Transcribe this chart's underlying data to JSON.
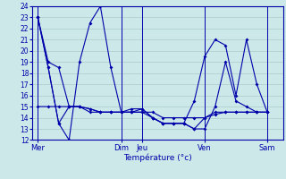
{
  "xlabel": "Température (°c)",
  "background_color": "#cce8e8",
  "grid_color": "#aacccc",
  "line_color": "#0000aa",
  "ylim": [
    12,
    24
  ],
  "yticks": [
    12,
    13,
    14,
    15,
    16,
    17,
    18,
    19,
    20,
    21,
    22,
    23,
    24
  ],
  "day_labels": [
    "Mer",
    "Dim",
    "Jeu",
    "Ven",
    "Sam"
  ],
  "day_positions": [
    0.5,
    8.5,
    10.5,
    16.5,
    22.5
  ],
  "xlim": [
    0,
    24
  ],
  "series": [
    {
      "x": [
        0.5,
        1.5,
        2.5,
        3.5,
        4.5,
        5.5,
        6.5,
        7.5,
        8.5,
        9.5,
        10.5,
        11.5,
        12.5,
        13.5,
        14.5,
        15.5,
        16.5,
        17.5,
        18.5,
        19.5,
        20.5,
        21.5,
        22.5
      ],
      "y": [
        23,
        19,
        18.5,
        15,
        15,
        14.8,
        14.5,
        14.5,
        14.5,
        14.5,
        14.5,
        14.5,
        14,
        14,
        14,
        14,
        14,
        14.3,
        14.5,
        14.5,
        14.5,
        14.5,
        14.5
      ]
    },
    {
      "x": [
        0.5,
        1.5,
        2.5,
        3.5,
        4.5,
        5.5,
        6.5,
        7.5,
        8.5,
        9.5,
        10.5,
        11.5,
        12.5,
        13.5,
        14.5,
        15.5,
        16.5,
        17.5,
        18.5,
        19.5,
        20.5,
        21.5,
        22.5
      ],
      "y": [
        23,
        18.5,
        13.5,
        12,
        19,
        22.5,
        24,
        18.5,
        14.5,
        14.8,
        14.8,
        14,
        13.5,
        13.5,
        13.5,
        15.5,
        19.5,
        21,
        20.5,
        16,
        21,
        17,
        14.5
      ]
    },
    {
      "x": [
        0.5,
        1.5,
        2.5,
        3.5,
        4.5,
        5.5,
        6.5,
        7.5,
        8.5,
        9.5,
        10.5,
        11.5,
        12.5,
        13.5,
        14.5,
        15.5,
        16.5,
        17.5,
        18.5,
        19.5,
        20.5,
        21.5,
        22.5
      ],
      "y": [
        23,
        18.5,
        13.5,
        15,
        15,
        14.5,
        14.5,
        14.5,
        14.5,
        14.5,
        14.8,
        14,
        13.5,
        13.5,
        13.5,
        13,
        13,
        15,
        19,
        15.5,
        15,
        14.5,
        14.5
      ]
    },
    {
      "x": [
        0.5,
        1.5,
        2.5,
        3.5,
        4.5,
        5.5,
        6.5,
        7.5,
        8.5,
        9.5,
        10.5,
        11.5,
        12.5,
        13.5,
        14.5,
        15.5,
        16.5,
        17.5,
        18.5,
        19.5,
        20.5,
        21.5,
        22.5
      ],
      "y": [
        15,
        15,
        15,
        15,
        15,
        14.8,
        14.5,
        14.5,
        14.5,
        14.5,
        14.5,
        14,
        13.5,
        13.5,
        13.5,
        13,
        14,
        14.5,
        14.5,
        14.5,
        14.5,
        14.5,
        14.5
      ]
    }
  ],
  "vlines": [
    0.5,
    8.5,
    10.5,
    16.5,
    22.5
  ]
}
